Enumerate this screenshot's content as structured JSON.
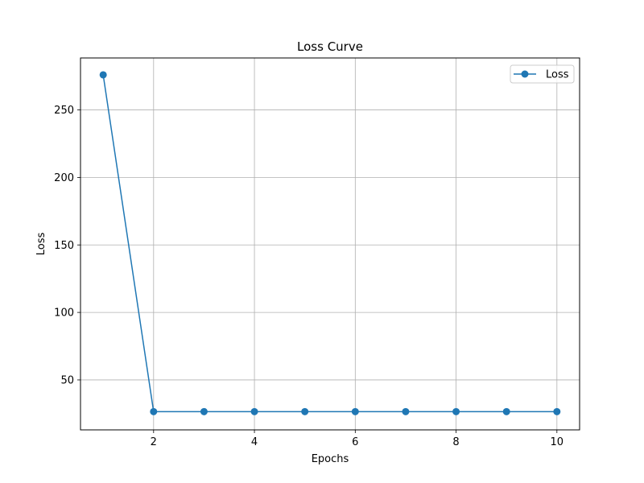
{
  "chart_data": {
    "type": "line",
    "title": "Loss Curve",
    "xlabel": "Epochs",
    "ylabel": "Loss",
    "xlim": [
      0.55,
      10.45
    ],
    "ylim": [
      13.0,
      288.5
    ],
    "x_ticks": [
      2,
      4,
      6,
      8,
      10
    ],
    "x_tick_labels": [
      "2",
      "4",
      "6",
      "8",
      "10"
    ],
    "y_ticks": [
      50,
      100,
      150,
      200,
      250
    ],
    "y_tick_labels": [
      "50",
      "100",
      "150",
      "200",
      "250"
    ],
    "grid": true,
    "legend_position": "top-right",
    "series": [
      {
        "name": "Loss",
        "color": "#1f77b4",
        "marker": "circle",
        "x": [
          1,
          2,
          3,
          4,
          5,
          6,
          7,
          8,
          9,
          10
        ],
        "values": [
          276,
          26.5,
          26.5,
          26.5,
          26.5,
          26.5,
          26.5,
          26.5,
          26.5,
          26.5
        ]
      }
    ]
  }
}
